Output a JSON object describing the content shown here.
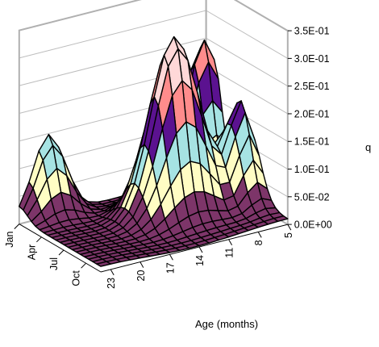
{
  "chart_data": {
    "type": "surface",
    "title": "",
    "zlabel": "q",
    "ylabel": "Age (months)",
    "xlabel": "",
    "zlim": [
      0,
      0.35
    ],
    "z_ticks": [
      "0.0E+00",
      "5.0E-02",
      "1.0E-01",
      "1.5E-01",
      "2.0E-01",
      "2.5E-01",
      "3.0E-01",
      "3.5E-01"
    ],
    "month_ticks": [
      "Jan",
      "Apr",
      "Jul",
      "Oct"
    ],
    "age_ticks": [
      "23",
      "20",
      "17",
      "14",
      "11",
      "8",
      "5"
    ],
    "month_range": [
      1,
      12
    ],
    "age_range": [
      5,
      24
    ],
    "band_colors": [
      "#7d3569",
      "#fffdc4",
      "#a6e3e3",
      "#5b1290",
      "#ff8c8c",
      "#ffd8d8"
    ],
    "underside_color": "#8a8af0",
    "peaks": [
      {
        "month": 6,
        "age": 12,
        "q": 0.32
      },
      {
        "month": 2,
        "age": 6,
        "q": 0.25
      },
      {
        "month": 1,
        "age": 21,
        "q": 0.14
      },
      {
        "month": 7,
        "age": 6,
        "q": 0.17
      }
    ]
  }
}
